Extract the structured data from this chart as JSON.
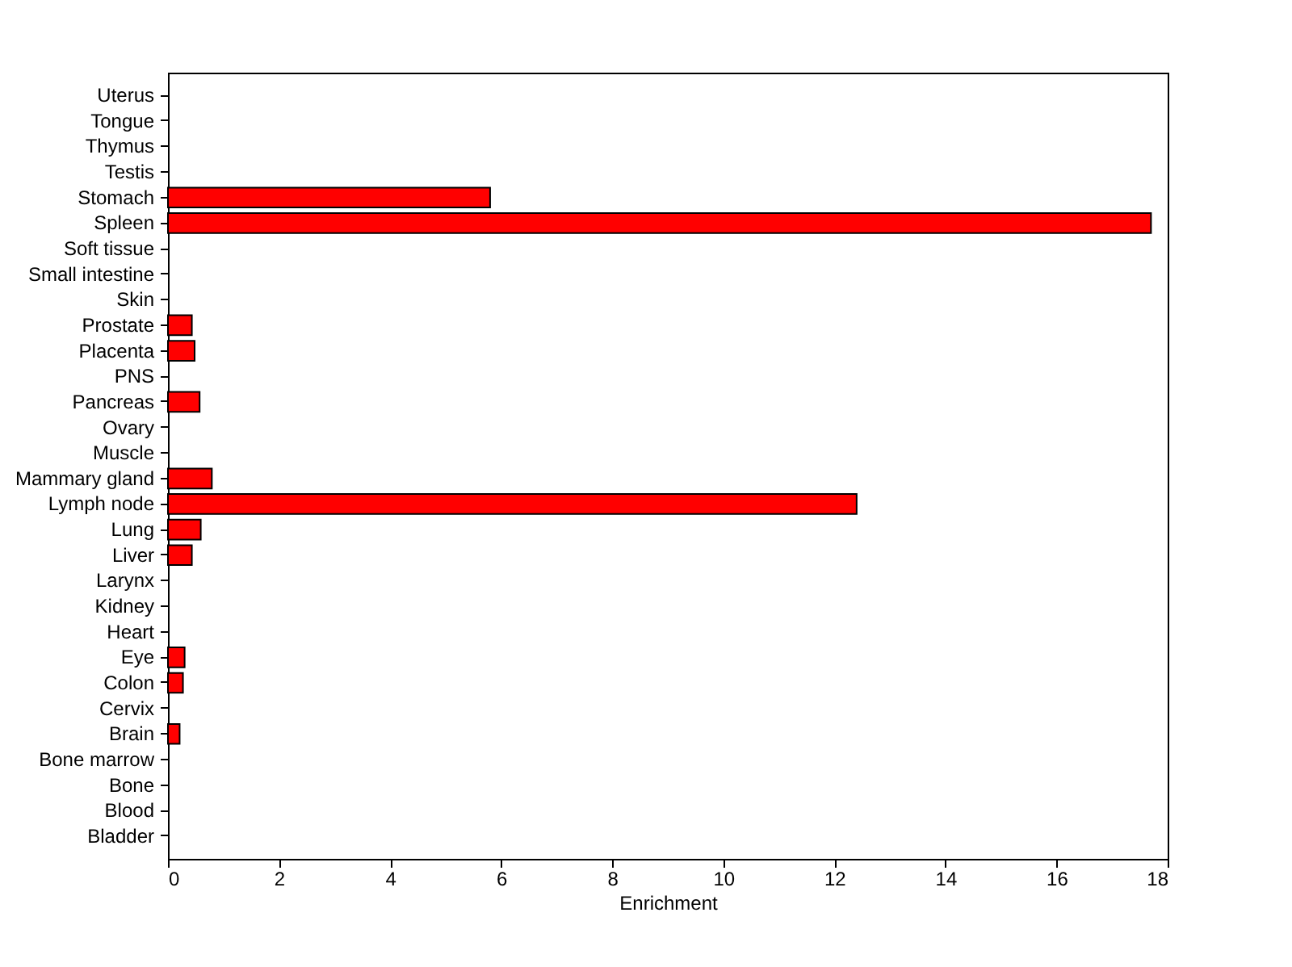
{
  "chart_data": {
    "type": "bar",
    "orientation": "horizontal",
    "xlabel": "Enrichment",
    "categories": [
      "Uterus",
      "Tongue",
      "Thymus",
      "Testis",
      "Stomach",
      "Spleen",
      "Soft tissue",
      "Small intestine",
      "Skin",
      "Prostate",
      "Placenta",
      "PNS",
      "Pancreas",
      "Ovary",
      "Muscle",
      "Mammary gland",
      "Lymph node",
      "Lung",
      "Liver",
      "Larynx",
      "Kidney",
      "Heart",
      "Eye",
      "Colon",
      "Cervix",
      "Brain",
      "Bone marrow",
      "Bone",
      "Blood",
      "Bladder"
    ],
    "values": [
      0,
      0,
      0,
      0,
      5.8,
      17.7,
      0,
      0,
      0,
      0.43,
      0.48,
      0,
      0.57,
      0,
      0,
      0.79,
      12.4,
      0.59,
      0.43,
      0,
      0,
      0,
      0.3,
      0.27,
      0,
      0.21,
      0,
      0,
      0,
      0
    ],
    "color": "#ff0000",
    "xlim": [
      0,
      18
    ],
    "xticks": [
      0,
      2,
      4,
      6,
      8,
      10,
      12,
      14,
      16,
      18
    ],
    "grid": false
  }
}
